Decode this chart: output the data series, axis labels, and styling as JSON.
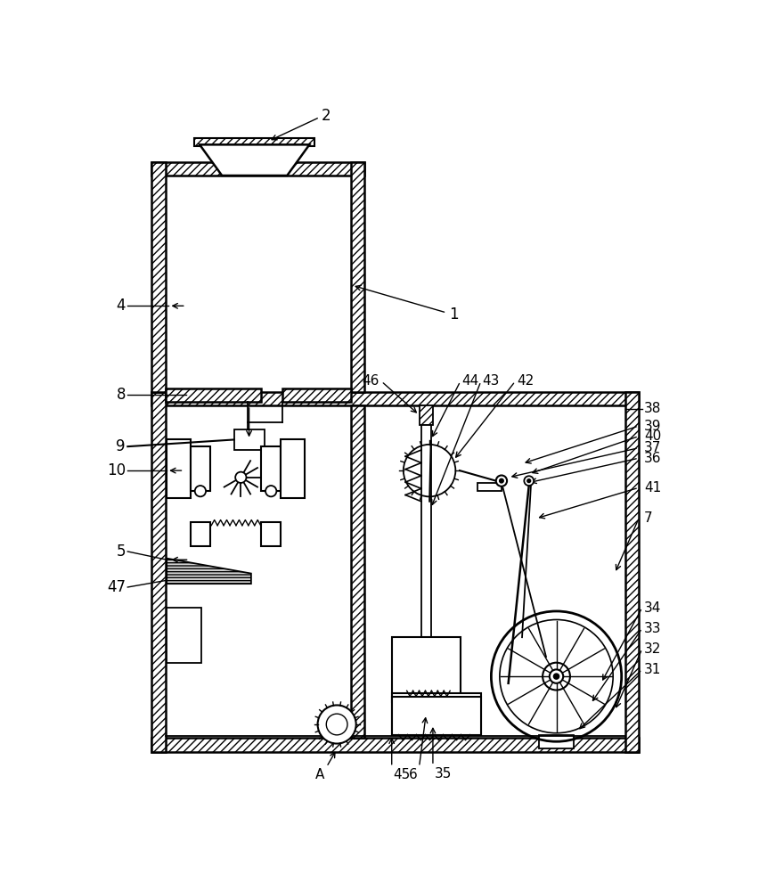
{
  "bg_color": "#ffffff",
  "lc": "#000000",
  "figsize": [
    8.52,
    10.0
  ],
  "dpi": 100
}
